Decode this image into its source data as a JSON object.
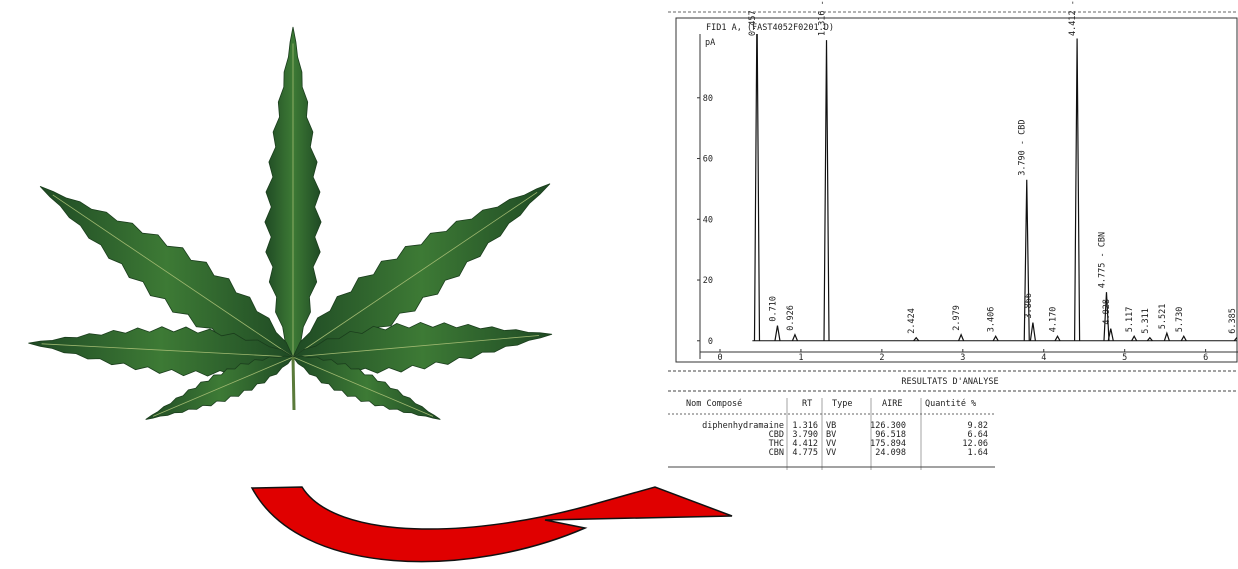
{
  "chromatogram": {
    "title": "FID1 A, (FAST4052F0201.D)",
    "y_unit": "pA",
    "xlim": [
      0,
      6.4
    ],
    "xticks": [
      0,
      1,
      2,
      3,
      4,
      5,
      6
    ],
    "ylim": [
      -6,
      101
    ],
    "yticks": [
      0,
      20,
      40,
      60,
      80
    ],
    "peaks": [
      {
        "rt": 0.457,
        "height": 110
      },
      {
        "rt": 0.71,
        "label": "0.710",
        "height": 5
      },
      {
        "rt": 0.926,
        "height": 2
      },
      {
        "rt": 1.316,
        "label": "1.316 - diphenhydramine",
        "height": 99
      },
      {
        "rt": 2.424,
        "height": 1
      },
      {
        "rt": 2.979,
        "height": 2
      },
      {
        "rt": 3.406,
        "height": 1.5
      },
      {
        "rt": 3.79,
        "label": "3.790 - CBD",
        "height": 53
      },
      {
        "rt": 3.866,
        "height": 6
      },
      {
        "rt": 4.17,
        "label": "4.170",
        "height": 1.5
      },
      {
        "rt": 4.412,
        "label": "4.412 - THC",
        "height": 99.5
      },
      {
        "rt": 4.775,
        "label": "4.775 - CBN",
        "height": 16
      },
      {
        "rt": 4.828,
        "height": 4
      },
      {
        "rt": 5.117,
        "height": 1.5
      },
      {
        "rt": 5.311,
        "height": 1
      },
      {
        "rt": 5.521,
        "height": 2.5
      },
      {
        "rt": 5.73,
        "label": "5.730",
        "height": 1.5
      },
      {
        "rt": 6.385,
        "height": 1
      }
    ]
  },
  "results": {
    "title": "RESULTATS D'ANALYSE",
    "headers": [
      "Nom Composé",
      "RT",
      "Type",
      "AIRE",
      "Quantité %"
    ],
    "rows": [
      [
        "diphenhydramaine",
        "1.316",
        "VB",
        "126.300",
        "9.82"
      ],
      [
        "CBD",
        "3.790",
        "BV",
        "96.518",
        "6.64"
      ],
      [
        "THC",
        "4.412",
        "VV",
        "175.894",
        "12.06"
      ],
      [
        "CBN",
        "4.775",
        "VV",
        "24.098",
        "1.64"
      ]
    ]
  }
}
